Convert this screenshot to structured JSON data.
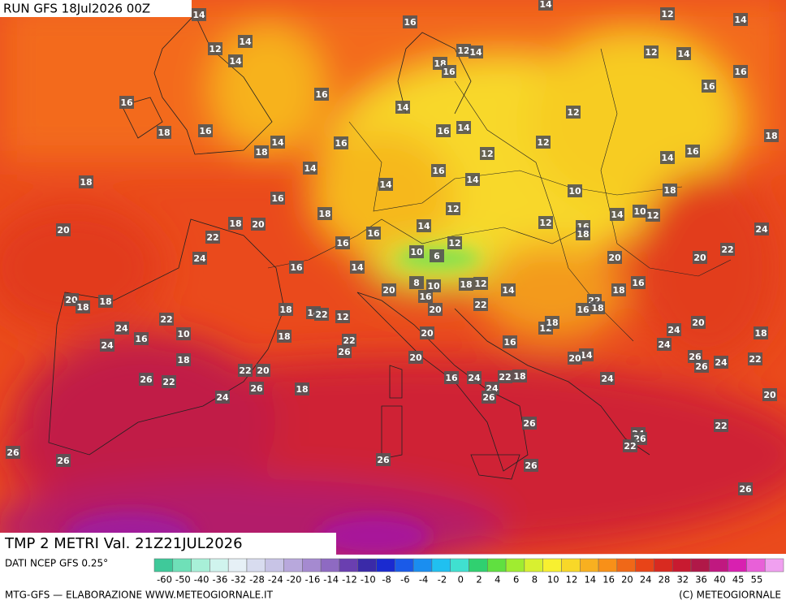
{
  "header": {
    "run": "RUN GFS 18Jul2026 00Z",
    "title": "TMP 2 METRI Val. 21Z21JUL2026",
    "source": "DATI NCEP GFS 0.25°"
  },
  "footer": {
    "left": "MTG-GFS — ELABORAZIONE WWW.METEOGIORNALE.IT",
    "right": "(C) METEOGIORNALE"
  },
  "scale": {
    "labels": [
      -60,
      -50,
      -40,
      -36,
      -32,
      -28,
      -24,
      -20,
      -16,
      -14,
      -12,
      -10,
      -8,
      -6,
      -4,
      -2,
      0,
      2,
      4,
      6,
      8,
      10,
      12,
      14,
      16,
      20,
      24,
      28,
      32,
      36,
      40,
      45,
      55
    ]
  },
  "map": {
    "labels": [
      14,
      16,
      14,
      12,
      14,
      12,
      14,
      14,
      12,
      14,
      18,
      16,
      12,
      14,
      16,
      16,
      16,
      16,
      14,
      12,
      18,
      16,
      16,
      14,
      12,
      18,
      14,
      18,
      16,
      12,
      14,
      16,
      14,
      16,
      18,
      14,
      14,
      10,
      18,
      16,
      18,
      12,
      18,
      20,
      14,
      12,
      16,
      18,
      14,
      10,
      12,
      24,
      20,
      22,
      16,
      16,
      22,
      24,
      10,
      6,
      12,
      16,
      14,
      20,
      20,
      20,
      8,
      10,
      16,
      18,
      12,
      14,
      16,
      18,
      22,
      16,
      18,
      20,
      18,
      18,
      18,
      14,
      22,
      12,
      20,
      22,
      22,
      20,
      24,
      16,
      10,
      12,
      18,
      24,
      18,
      20,
      18,
      22,
      24,
      16,
      24,
      26,
      20,
      14,
      20,
      26,
      24,
      22,
      18,
      22,
      20,
      26,
      26,
      22,
      16,
      24,
      22,
      18,
      24,
      26,
      18,
      24,
      26,
      24,
      20,
      26,
      22,
      24,
      26,
      22,
      26,
      26,
      26,
      26,
      26
    ]
  }
}
